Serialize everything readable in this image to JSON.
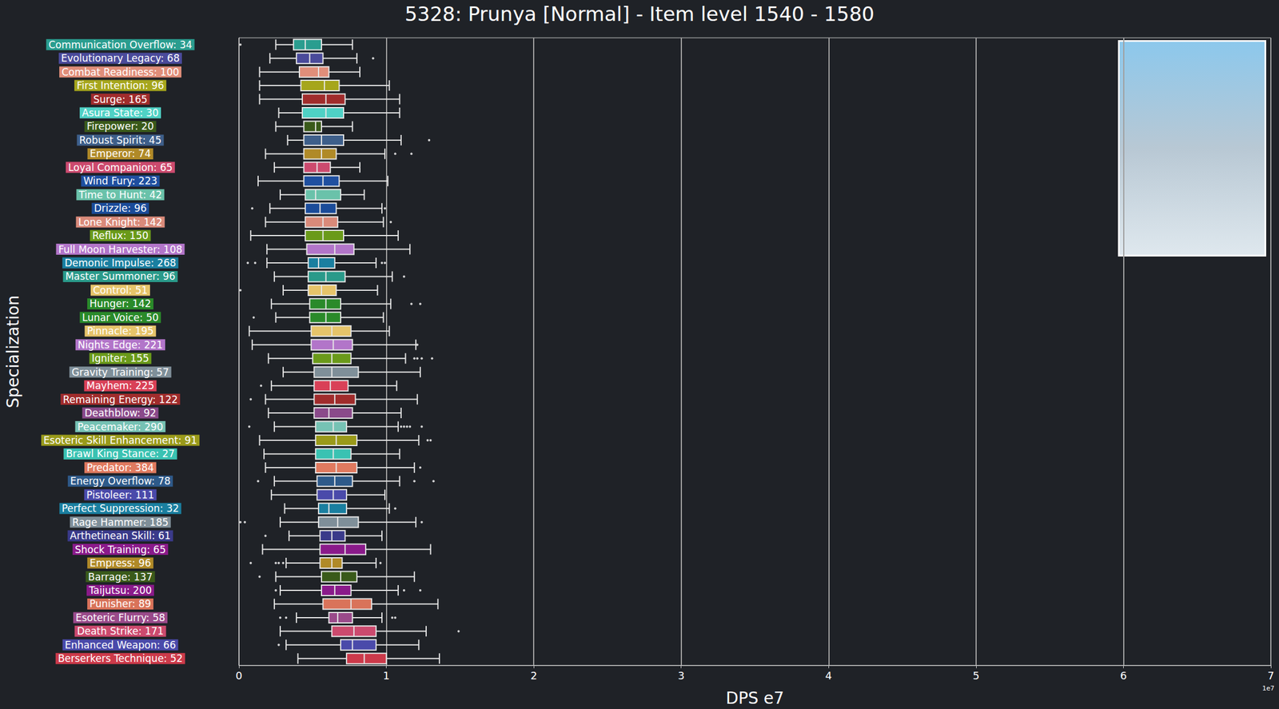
{
  "chart_data": {
    "type": "boxplot",
    "orientation": "horizontal",
    "title": "5328: Prunya [Normal] - Item level 1540 - 1580",
    "xlabel": "DPS e7",
    "ylabel": "Specialization",
    "annotations": [
      "1e7"
    ],
    "xlim": [
      0,
      7
    ],
    "xticks": [
      0,
      1,
      2,
      3,
      4,
      5,
      6,
      7
    ],
    "grid": true,
    "categories": [
      "Communication Overflow: 34",
      "Evolutionary Legacy: 68",
      "Combat Readiness: 100",
      "First Intention: 96",
      "Surge: 165",
      "Asura State: 30",
      "Firepower: 20",
      "Robust Spirit: 45",
      "Emperor: 74",
      "Loyal Companion: 65",
      "Wind Fury: 223",
      "Time to Hunt: 42",
      "Drizzle: 96",
      "Lone Knight: 142",
      "Reflux: 150",
      "Full Moon Harvester: 108",
      "Demonic Impulse: 268",
      "Master Summoner: 96",
      "Control: 51",
      "Hunger: 142",
      "Lunar Voice: 50",
      "Pinnacle: 195",
      "Nights Edge: 221",
      "Igniter: 155",
      "Gravity Training: 57",
      "Mayhem: 225",
      "Remaining Energy: 122",
      "Deathblow: 92",
      "Peacemaker: 290",
      "Esoteric Skill Enhancement: 91",
      "Brawl King Stance: 27",
      "Predator: 384",
      "Energy Overflow: 78",
      "Pistoleer: 111",
      "Perfect Suppression: 32",
      "Rage Hammer: 185",
      "Arthetinean Skill: 61",
      "Shock Training: 65",
      "Empress: 96",
      "Barrage: 137",
      "Taijutsu: 200",
      "Punisher: 89",
      "Esoteric Flurry: 58",
      "Death Strike: 171",
      "Enhanced Weapon: 66",
      "Berserkers Technique: 52"
    ],
    "values": [
      [
        0.25,
        0.37,
        0.45,
        0.56,
        0.77
      ],
      [
        0.21,
        0.39,
        0.48,
        0.57,
        0.8
      ],
      [
        0.14,
        0.41,
        0.54,
        0.61,
        0.82
      ],
      [
        0.14,
        0.42,
        0.58,
        0.68,
        1.02
      ],
      [
        0.14,
        0.43,
        0.59,
        0.72,
        1.09
      ],
      [
        0.27,
        0.43,
        0.59,
        0.71,
        1.09
      ],
      [
        0.25,
        0.44,
        0.52,
        0.56,
        0.77
      ],
      [
        0.33,
        0.44,
        0.56,
        0.71,
        1.1
      ],
      [
        0.18,
        0.44,
        0.56,
        0.66,
        0.99
      ],
      [
        0.24,
        0.44,
        0.53,
        0.62,
        0.82
      ],
      [
        0.13,
        0.44,
        0.57,
        0.68,
        1.01
      ],
      [
        0.28,
        0.45,
        0.52,
        0.69,
        0.85
      ],
      [
        0.21,
        0.45,
        0.55,
        0.66,
        0.97
      ],
      [
        0.18,
        0.45,
        0.57,
        0.67,
        0.98
      ],
      [
        0.08,
        0.45,
        0.57,
        0.71,
        1.08
      ],
      [
        0.19,
        0.46,
        0.65,
        0.78,
        1.16
      ],
      [
        0.19,
        0.47,
        0.54,
        0.65,
        0.93
      ],
      [
        0.24,
        0.47,
        0.59,
        0.72,
        1.04
      ],
      [
        0.3,
        0.47,
        0.56,
        0.66,
        0.94
      ],
      [
        0.22,
        0.48,
        0.59,
        0.69,
        1.03
      ],
      [
        0.25,
        0.48,
        0.59,
        0.69,
        0.98
      ],
      [
        0.07,
        0.49,
        0.63,
        0.76,
        1.02
      ],
      [
        0.09,
        0.49,
        0.64,
        0.77,
        1.2
      ],
      [
        0.2,
        0.5,
        0.63,
        0.76,
        1.13
      ],
      [
        0.3,
        0.51,
        0.63,
        0.81,
        1.23
      ],
      [
        0.22,
        0.51,
        0.62,
        0.74,
        1.07
      ],
      [
        0.18,
        0.51,
        0.65,
        0.79,
        1.21
      ],
      [
        0.2,
        0.51,
        0.61,
        0.77,
        1.1
      ],
      [
        0.24,
        0.52,
        0.64,
        0.73,
        1.08
      ],
      [
        0.14,
        0.52,
        0.66,
        0.8,
        1.22
      ],
      [
        0.17,
        0.52,
        0.64,
        0.76,
        1.09
      ],
      [
        0.18,
        0.52,
        0.66,
        0.8,
        1.19
      ],
      [
        0.24,
        0.53,
        0.65,
        0.77,
        1.09
      ],
      [
        0.22,
        0.53,
        0.64,
        0.73,
        0.99
      ],
      [
        0.31,
        0.54,
        0.61,
        0.73,
        1.02
      ],
      [
        0.28,
        0.54,
        0.67,
        0.81,
        1.2
      ],
      [
        0.34,
        0.55,
        0.63,
        0.72,
        0.97
      ],
      [
        0.16,
        0.55,
        0.72,
        0.86,
        1.3
      ],
      [
        0.32,
        0.55,
        0.63,
        0.7,
        0.93
      ],
      [
        0.25,
        0.56,
        0.69,
        0.8,
        1.19
      ],
      [
        0.28,
        0.56,
        0.65,
        0.76,
        1.08
      ],
      [
        0.24,
        0.57,
        0.76,
        0.9,
        1.35
      ],
      [
        0.39,
        0.61,
        0.67,
        0.77,
        0.97
      ],
      [
        0.28,
        0.63,
        0.78,
        0.93,
        1.27
      ],
      [
        0.32,
        0.69,
        0.77,
        0.93,
        1.22
      ],
      [
        0.4,
        0.73,
        0.85,
        1.0,
        1.36
      ]
    ],
    "outliers": [
      [
        0.01
      ],
      [
        0.91
      ],
      [],
      [],
      [],
      [],
      [],
      [
        1.29
      ],
      [
        1.06,
        1.17
      ],
      [],
      [],
      [],
      [
        0.09,
        0.99
      ],
      [
        1.03
      ],
      [],
      [],
      [
        0.06,
        0.11,
        0.97,
        0.99
      ],
      [
        1.12
      ],
      [
        0.01
      ],
      [
        1.17,
        1.23
      ],
      [
        0.1
      ],
      [],
      [
        1.21
      ],
      [
        1.19,
        1.21,
        1.24,
        1.31
      ],
      [],
      [
        0.15
      ],
      [
        0.08
      ],
      [],
      [
        0.07,
        1.1,
        1.12,
        1.14,
        1.16,
        1.24
      ],
      [
        1.28,
        1.3
      ],
      [],
      [
        1.23
      ],
      [
        0.13,
        1.19,
        1.32
      ],
      [],
      [
        1.06
      ],
      [
        0.01,
        0.04,
        1.24
      ],
      [
        0.18
      ],
      [],
      [
        0.08,
        0.25,
        0.27,
        0.3,
        0.96
      ],
      [
        0.14
      ],
      [
        0.25,
        1.12,
        1.23
      ],
      [],
      [
        0.28,
        0.32,
        1.04,
        1.06
      ],
      [
        1.49
      ],
      [
        0.27
      ],
      []
    ],
    "colors": [
      "#2a9d8f",
      "#4a4a9a",
      "#e08e7a",
      "#a6a61c",
      "#a02c2c",
      "#4fd1c5",
      "#3a5a1a",
      "#3e5f8a",
      "#b08a28",
      "#cc4a6e",
      "#1f4fa0",
      "#6ac2aa",
      "#1a4b99",
      "#d98a7a",
      "#6a9a1a",
      "#b275c9",
      "#1a7fa0",
      "#2a9a8a",
      "#e6c46a",
      "#2a8a2a",
      "#2a8a2a",
      "#e6c46a",
      "#b275c9",
      "#6a9a1a",
      "#7f8f99",
      "#d94057",
      "#a02c2c",
      "#8a4a8a",
      "#76c2b4",
      "#9a9a1a",
      "#3ac2b2",
      "#e07a5f",
      "#2e5a8a",
      "#4a4aaa",
      "#1a7fa0",
      "#7f8f99",
      "#3a3a8a",
      "#8a1a8a",
      "#b08a28",
      "#3a5a1a",
      "#8a1a8a",
      "#d9735a",
      "#9a4a8a",
      "#cc4a6e",
      "#4a4aaa",
      "#cc3a4a"
    ]
  }
}
